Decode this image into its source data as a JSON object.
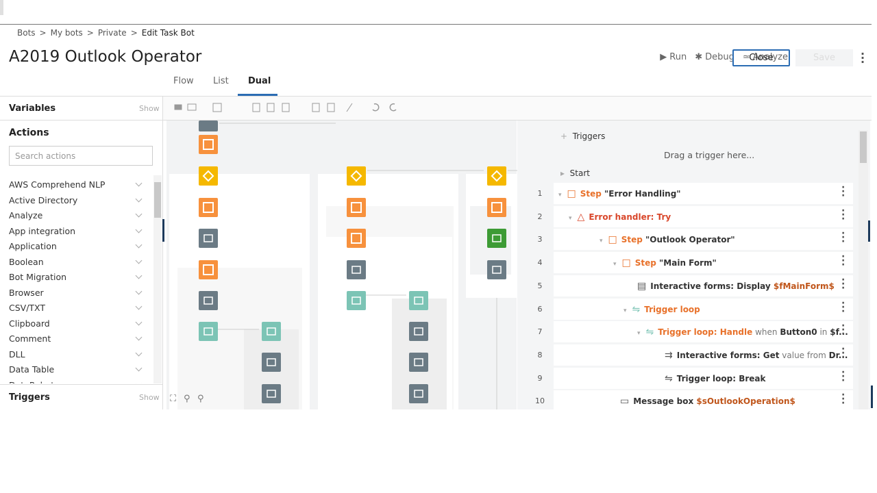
{
  "breadcrumb": {
    "items": [
      "Bots",
      "My bots",
      "Private",
      "Edit Task Bot"
    ],
    "separator": ">"
  },
  "header": {
    "title": "A2019 Outlook Operator",
    "actions": [
      "Run",
      "Debug",
      "Analyze"
    ],
    "close": "Close",
    "save": "Save"
  },
  "tabs": [
    "Flow",
    "List",
    "Dual"
  ],
  "left_panel": {
    "variables": "Variables",
    "variables_show": "Show",
    "actions": "Actions",
    "search_placeholder": "Search actions",
    "action_list": [
      "AWS Comprehend NLP",
      "Active Directory",
      "Analyze",
      "App integration",
      "Application",
      "Boolean",
      "Bot Migration",
      "Browser",
      "CSV/TXT",
      "Clipboard",
      "Comment",
      "DLL",
      "Data Table",
      "DataRobot"
    ],
    "triggers": "Triggers",
    "triggers_show": "Show"
  },
  "list_panel": {
    "triggers": "Triggers",
    "drop_hint": "Drag a trigger here...",
    "start": "Start",
    "rows": [
      {
        "number": 1,
        "parts": [
          "Step",
          " \"Error Handling\""
        ]
      },
      {
        "number": 2,
        "parts": [
          "Error handler: Try"
        ]
      },
      {
        "number": 3,
        "parts": [
          "Step",
          " \"Outlook Operator\""
        ]
      },
      {
        "number": 4,
        "parts": [
          "Step",
          " \"Main Form\""
        ]
      },
      {
        "number": 5,
        "parts": [
          "Interactive forms: Display",
          " $fMainForm$"
        ]
      },
      {
        "number": 6,
        "parts": [
          "Trigger loop"
        ]
      },
      {
        "number": 7,
        "parts": [
          "Trigger loop: Handle",
          " when ",
          "Button0",
          " in ",
          "$f..."
        ]
      },
      {
        "number": 8,
        "parts": [
          "Interactive forms: Get",
          " value from ",
          "Dr..."
        ]
      },
      {
        "number": 9,
        "parts": [
          "Trigger loop: Break"
        ]
      },
      {
        "number": 10,
        "parts": [
          "Message box",
          " $sOutlookOperation$"
        ]
      }
    ]
  }
}
